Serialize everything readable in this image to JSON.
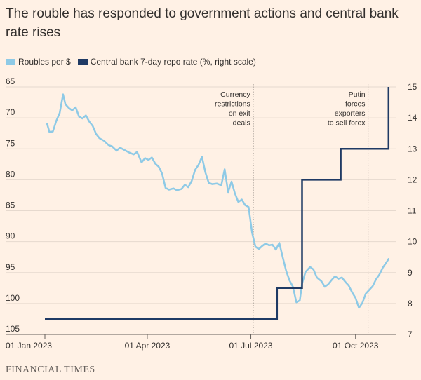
{
  "chart_data": {
    "type": "line",
    "title": "The rouble has responded to government actions and central bank rate rises",
    "x_range": [
      "2023-01-01",
      "2023-11-01"
    ],
    "x_ticks": [
      {
        "date": "2023-01-01",
        "label": "01 Jan 2023"
      },
      {
        "date": "2023-04-01",
        "label": "01 Apr 2023"
      },
      {
        "date": "2023-07-01",
        "label": "01 Jul 2023"
      },
      {
        "date": "2023-10-01",
        "label": "01 Oct 2023"
      }
    ],
    "y_left": {
      "range": [
        105,
        65
      ],
      "inverted": true,
      "ticks": [
        65,
        70,
        75,
        80,
        85,
        90,
        95,
        100,
        105
      ]
    },
    "y_right": {
      "range": [
        7,
        15
      ],
      "ticks": [
        15,
        14,
        13,
        12,
        11,
        10,
        9,
        8,
        7
      ]
    },
    "grid": true,
    "legend_position": "top-left",
    "series": [
      {
        "name": "Roubles per $",
        "axis": "left",
        "color": "#8ecae6",
        "points": [
          [
            "2023-01-03",
            71.0
          ],
          [
            "2023-01-05",
            72.3
          ],
          [
            "2023-01-08",
            72.2
          ],
          [
            "2023-01-11",
            70.5
          ],
          [
            "2023-01-14",
            69.2
          ],
          [
            "2023-01-17",
            66.2
          ],
          [
            "2023-01-19",
            67.8
          ],
          [
            "2023-01-22",
            68.4
          ],
          [
            "2023-01-25",
            68.8
          ],
          [
            "2023-01-28",
            68.3
          ],
          [
            "2023-01-31",
            69.8
          ],
          [
            "2023-02-03",
            70.1
          ],
          [
            "2023-02-06",
            69.6
          ],
          [
            "2023-02-09",
            70.6
          ],
          [
            "2023-02-12",
            71.3
          ],
          [
            "2023-02-15",
            72.6
          ],
          [
            "2023-02-18",
            73.3
          ],
          [
            "2023-02-22",
            73.7
          ],
          [
            "2023-02-26",
            74.4
          ],
          [
            "2023-03-01",
            74.6
          ],
          [
            "2023-03-05",
            75.3
          ],
          [
            "2023-03-08",
            74.8
          ],
          [
            "2023-03-12",
            75.2
          ],
          [
            "2023-03-16",
            75.6
          ],
          [
            "2023-03-20",
            75.9
          ],
          [
            "2023-03-23",
            75.5
          ],
          [
            "2023-03-27",
            77.2
          ],
          [
            "2023-03-30",
            76.5
          ],
          [
            "2023-04-02",
            76.8
          ],
          [
            "2023-04-05",
            76.4
          ],
          [
            "2023-04-08",
            77.4
          ],
          [
            "2023-04-11",
            77.9
          ],
          [
            "2023-04-14",
            79.0
          ],
          [
            "2023-04-17",
            81.3
          ],
          [
            "2023-04-20",
            81.6
          ],
          [
            "2023-04-24",
            81.4
          ],
          [
            "2023-04-27",
            81.7
          ],
          [
            "2023-05-01",
            81.5
          ],
          [
            "2023-05-04",
            80.8
          ],
          [
            "2023-05-07",
            81.2
          ],
          [
            "2023-05-10",
            80.2
          ],
          [
            "2023-05-13",
            78.4
          ],
          [
            "2023-05-16",
            77.6
          ],
          [
            "2023-05-19",
            76.3
          ],
          [
            "2023-05-22",
            78.8
          ],
          [
            "2023-05-25",
            80.5
          ],
          [
            "2023-05-28",
            80.7
          ],
          [
            "2023-06-01",
            80.6
          ],
          [
            "2023-06-05",
            80.9
          ],
          [
            "2023-06-08",
            78.3
          ],
          [
            "2023-06-11",
            82.0
          ],
          [
            "2023-06-14",
            80.3
          ],
          [
            "2023-06-17",
            82.2
          ],
          [
            "2023-06-20",
            83.6
          ],
          [
            "2023-06-23",
            83.2
          ],
          [
            "2023-06-26",
            84.1
          ],
          [
            "2023-06-29",
            84.4
          ],
          [
            "2023-07-02",
            88.5
          ],
          [
            "2023-07-05",
            90.8
          ],
          [
            "2023-07-08",
            91.2
          ],
          [
            "2023-07-11",
            90.7
          ],
          [
            "2023-07-14",
            90.3
          ],
          [
            "2023-07-17",
            90.6
          ],
          [
            "2023-07-20",
            90.5
          ],
          [
            "2023-07-23",
            91.3
          ],
          [
            "2023-07-26",
            90.2
          ],
          [
            "2023-07-29",
            92.5
          ],
          [
            "2023-08-01",
            94.7
          ],
          [
            "2023-08-04",
            96.3
          ],
          [
            "2023-08-07",
            97.3
          ],
          [
            "2023-08-10",
            99.8
          ],
          [
            "2023-08-13",
            99.5
          ],
          [
            "2023-08-15",
            96.8
          ],
          [
            "2023-08-18",
            94.9
          ],
          [
            "2023-08-22",
            94.1
          ],
          [
            "2023-08-25",
            94.5
          ],
          [
            "2023-08-28",
            95.8
          ],
          [
            "2023-09-01",
            96.4
          ],
          [
            "2023-09-04",
            97.3
          ],
          [
            "2023-09-07",
            96.9
          ],
          [
            "2023-09-10",
            96.2
          ],
          [
            "2023-09-13",
            95.6
          ],
          [
            "2023-09-16",
            96.0
          ],
          [
            "2023-09-19",
            95.8
          ],
          [
            "2023-09-22",
            96.5
          ],
          [
            "2023-09-25",
            97.1
          ],
          [
            "2023-09-28",
            98.2
          ],
          [
            "2023-10-01",
            99.1
          ],
          [
            "2023-10-04",
            100.7
          ],
          [
            "2023-10-07",
            99.9
          ],
          [
            "2023-10-10",
            98.4
          ],
          [
            "2023-10-13",
            97.8
          ],
          [
            "2023-10-16",
            97.2
          ],
          [
            "2023-10-19",
            96.1
          ],
          [
            "2023-10-22",
            95.3
          ],
          [
            "2023-10-25",
            94.2
          ],
          [
            "2023-10-28",
            93.4
          ],
          [
            "2023-10-30",
            92.8
          ]
        ]
      },
      {
        "name": "Central bank 7-day repo rate (%, right scale)",
        "axis": "right",
        "color": "#1f3a64",
        "steps": [
          [
            "2023-01-01",
            7.5
          ],
          [
            "2023-07-24",
            8.5
          ],
          [
            "2023-08-15",
            12.0
          ],
          [
            "2023-09-18",
            13.0
          ],
          [
            "2023-10-30",
            15.0
          ]
        ]
      }
    ],
    "annotations": [
      {
        "date": "2023-07-03",
        "lines": [
          "Currency",
          "restrictions",
          "on exit",
          "deals"
        ]
      },
      {
        "date": "2023-10-12",
        "lines": [
          "Putin",
          "forces",
          "exporters",
          "to sell forex"
        ]
      }
    ]
  },
  "legend": {
    "rouble_label": "Roubles per $",
    "repo_label": "Central bank 7-day repo rate (%, right scale)"
  },
  "source": "FINANCIAL TIMES"
}
